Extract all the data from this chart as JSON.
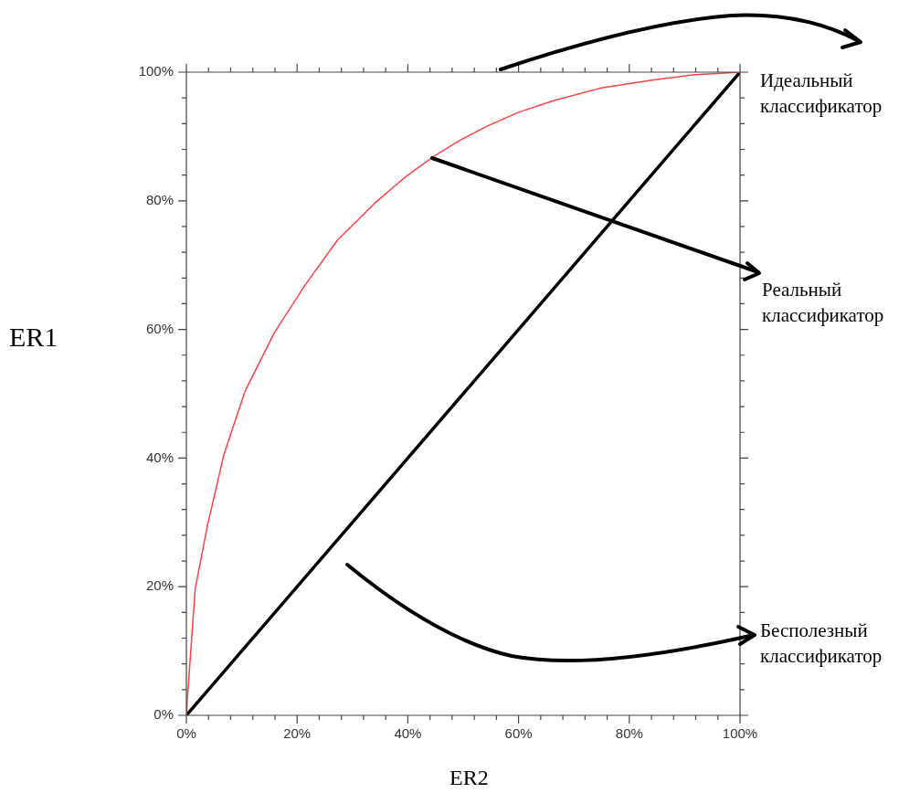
{
  "chart_data": {
    "type": "line",
    "xlabel": "ER2",
    "ylabel": "ER1",
    "xlim": [
      0,
      100
    ],
    "ylim": [
      0,
      100
    ],
    "xticks": [
      {
        "value": 0,
        "label": "0%"
      },
      {
        "value": 4,
        "label": null
      },
      {
        "value": 8,
        "label": null
      },
      {
        "value": 12,
        "label": null
      },
      {
        "value": 16,
        "label": null
      },
      {
        "value": 20,
        "label": "20%"
      },
      {
        "value": 24,
        "label": null
      },
      {
        "value": 28,
        "label": null
      },
      {
        "value": 32,
        "label": null
      },
      {
        "value": 36,
        "label": null
      },
      {
        "value": 40,
        "label": "40%"
      },
      {
        "value": 44,
        "label": null
      },
      {
        "value": 48,
        "label": null
      },
      {
        "value": 52,
        "label": null
      },
      {
        "value": 56,
        "label": null
      },
      {
        "value": 60,
        "label": "60%"
      },
      {
        "value": 64,
        "label": null
      },
      {
        "value": 68,
        "label": null
      },
      {
        "value": 72,
        "label": null
      },
      {
        "value": 76,
        "label": null
      },
      {
        "value": 80,
        "label": "80%"
      },
      {
        "value": 84,
        "label": null
      },
      {
        "value": 88,
        "label": null
      },
      {
        "value": 92,
        "label": null
      },
      {
        "value": 96,
        "label": null
      },
      {
        "value": 100,
        "label": "100%"
      }
    ],
    "yticks": [
      {
        "value": 0,
        "label": "0%"
      },
      {
        "value": 4,
        "label": null
      },
      {
        "value": 8,
        "label": null
      },
      {
        "value": 12,
        "label": null
      },
      {
        "value": 16,
        "label": null
      },
      {
        "value": 20,
        "label": "20%"
      },
      {
        "value": 24,
        "label": null
      },
      {
        "value": 28,
        "label": null
      },
      {
        "value": 32,
        "label": null
      },
      {
        "value": 36,
        "label": null
      },
      {
        "value": 40,
        "label": "40%"
      },
      {
        "value": 44,
        "label": null
      },
      {
        "value": 48,
        "label": null
      },
      {
        "value": 52,
        "label": null
      },
      {
        "value": 56,
        "label": null
      },
      {
        "value": 60,
        "label": "60%"
      },
      {
        "value": 64,
        "label": null
      },
      {
        "value": 68,
        "label": null
      },
      {
        "value": 72,
        "label": null
      },
      {
        "value": 76,
        "label": null
      },
      {
        "value": 80,
        "label": "80%"
      },
      {
        "value": 84,
        "label": null
      },
      {
        "value": 88,
        "label": null
      },
      {
        "value": 92,
        "label": null
      },
      {
        "value": 96,
        "label": null
      },
      {
        "value": 100,
        "label": "100%"
      }
    ],
    "grid": false,
    "legend": false,
    "marker": "none",
    "line_style": "solid",
    "series": [
      {
        "color": "#ff4040",
        "x": [
          0,
          0.2,
          1.6,
          3.8,
          6.8,
          10.6,
          15.9,
          21.3,
          27.3,
          34.1,
          39.4,
          44.7,
          49.4,
          54.3,
          59.8,
          66.4,
          74.7,
          83.5,
          91.7,
          100
        ],
        "values": [
          0,
          2.8,
          19.7,
          29.5,
          40.6,
          50.4,
          59.5,
          66.7,
          73.9,
          79.7,
          83.6,
          86.9,
          89.4,
          91.6,
          93.7,
          95.6,
          97.5,
          98.7,
          99.6,
          100
        ]
      },
      {
        "color": "#000000",
        "x": [
          0,
          100
        ],
        "values": [
          0,
          100
        ]
      }
    ],
    "annotations": [
      "Идеальный классификатор",
      "Реальный классификатор",
      "Бесполезный классификатор"
    ]
  }
}
